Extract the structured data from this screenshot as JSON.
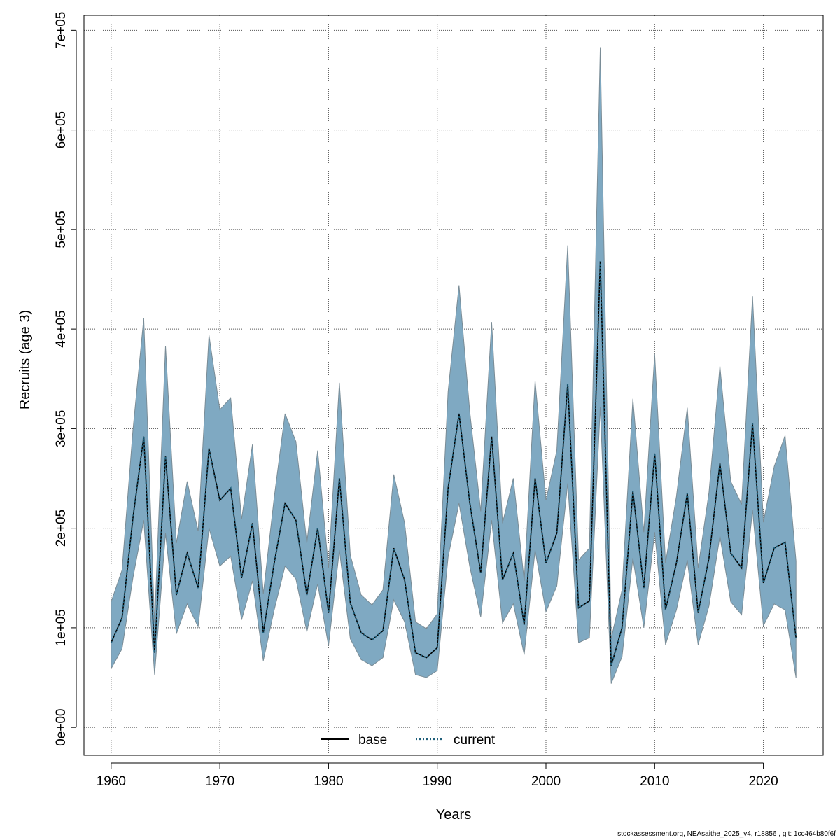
{
  "chart_data": {
    "type": "line",
    "xlabel": "Years",
    "ylabel": "Recruits (age 3)",
    "xlim": [
      1957.5,
      2025.5
    ],
    "ylim": [
      -28000,
      715000
    ],
    "x_ticks": [
      {
        "value": 1960,
        "label": "1960"
      },
      {
        "value": 1970,
        "label": "1970"
      },
      {
        "value": 1980,
        "label": "1980"
      },
      {
        "value": 1990,
        "label": "1990"
      },
      {
        "value": 2000,
        "label": "2000"
      },
      {
        "value": 2010,
        "label": "2010"
      },
      {
        "value": 2020,
        "label": "2020"
      }
    ],
    "y_ticks": [
      {
        "value": 0,
        "label": "0e+00"
      },
      {
        "value": 100000,
        "label": "1e+05"
      },
      {
        "value": 200000,
        "label": "2e+05"
      },
      {
        "value": 300000,
        "label": "3e+05"
      },
      {
        "value": 400000,
        "label": "4e+05"
      },
      {
        "value": 500000,
        "label": "5e+05"
      },
      {
        "value": 600000,
        "label": "6e+05"
      },
      {
        "value": 700000,
        "label": "7e+05"
      }
    ],
    "grid": true,
    "legend_position": "bottom-center",
    "legend": [
      {
        "label": "base",
        "color": "#000000",
        "style": "solid"
      },
      {
        "label": "current",
        "color": "#1f5f7a",
        "style": "dotted"
      }
    ],
    "band_color": "#7fa9c2",
    "band_edge_color": "#7a8c96",
    "x": [
      1960,
      1961,
      1962,
      1963,
      1964,
      1965,
      1966,
      1967,
      1968,
      1969,
      1970,
      1971,
      1972,
      1973,
      1974,
      1975,
      1976,
      1977,
      1978,
      1979,
      1980,
      1981,
      1982,
      1983,
      1984,
      1985,
      1986,
      1987,
      1988,
      1989,
      1990,
      1991,
      1992,
      1993,
      1994,
      1995,
      1996,
      1997,
      1998,
      1999,
      2000,
      2001,
      2002,
      2003,
      2004,
      2005,
      2006,
      2007,
      2008,
      2009,
      2010,
      2011,
      2012,
      2013,
      2014,
      2015,
      2016,
      2017,
      2018,
      2019,
      2020,
      2021,
      2022,
      2023
    ],
    "series": [
      {
        "name": "base",
        "color": "#000000",
        "values": [
          85000,
          110000,
          210000,
          292000,
          75000,
          272000,
          133000,
          175000,
          140000,
          280000,
          228000,
          240000,
          150000,
          205000,
          95000,
          165000,
          225000,
          208000,
          133000,
          200000,
          115000,
          250000,
          125000,
          95000,
          88000,
          97000,
          180000,
          148000,
          75000,
          70000,
          80000,
          240000,
          315000,
          225000,
          155000,
          292000,
          148000,
          175000,
          103000,
          250000,
          165000,
          195000,
          345000,
          120000,
          127000,
          468000,
          62000,
          100000,
          237000,
          140000,
          275000,
          118000,
          165000,
          235000,
          115000,
          170000,
          265000,
          175000,
          160000,
          305000,
          145000,
          180000,
          186000,
          90000
        ]
      },
      {
        "name": "current",
        "color": "#1f5f7a",
        "values": [
          85000,
          110000,
          210000,
          292000,
          75000,
          272000,
          133000,
          175000,
          140000,
          280000,
          228000,
          240000,
          150000,
          205000,
          95000,
          165000,
          225000,
          208000,
          133000,
          200000,
          115000,
          250000,
          125000,
          95000,
          88000,
          97000,
          180000,
          148000,
          75000,
          70000,
          80000,
          240000,
          315000,
          225000,
          155000,
          292000,
          148000,
          175000,
          103000,
          250000,
          165000,
          195000,
          345000,
          120000,
          127000,
          468000,
          62000,
          100000,
          237000,
          140000,
          275000,
          118000,
          165000,
          235000,
          115000,
          170000,
          265000,
          175000,
          160000,
          305000,
          145000,
          180000,
          186000,
          90000
        ]
      }
    ],
    "band_lower": [
      59000,
      79000,
      150000,
      208000,
      53000,
      195000,
      94000,
      124000,
      101000,
      200000,
      162000,
      172000,
      108000,
      147000,
      67000,
      118000,
      162000,
      149000,
      96000,
      144000,
      82000,
      178000,
      89000,
      68000,
      62000,
      70000,
      128000,
      106000,
      53000,
      50000,
      57000,
      171000,
      225000,
      161000,
      111000,
      208000,
      105000,
      124000,
      73000,
      178000,
      116000,
      142000,
      245000,
      85000,
      90000,
      322000,
      44000,
      71000,
      170000,
      100000,
      196000,
      83000,
      118000,
      168000,
      83000,
      122000,
      192000,
      126000,
      113000,
      218000,
      102000,
      124000,
      118000,
      50000
    ],
    "band_upper": [
      126000,
      158000,
      298000,
      411000,
      105000,
      383000,
      185000,
      247000,
      197000,
      394000,
      319000,
      331000,
      209000,
      284000,
      134000,
      231000,
      315000,
      287000,
      185000,
      278000,
      160000,
      346000,
      173000,
      133000,
      123000,
      138000,
      254000,
      205000,
      106000,
      99000,
      114000,
      337000,
      444000,
      316000,
      217000,
      407000,
      205000,
      250000,
      147000,
      348000,
      228000,
      278000,
      484000,
      168000,
      180000,
      683000,
      89000,
      138000,
      330000,
      196000,
      375000,
      165000,
      232000,
      321000,
      160000,
      236000,
      363000,
      247000,
      224000,
      433000,
      206000,
      262000,
      293000,
      167000
    ]
  },
  "footer": {
    "text": "stockassessment.org, NEAsaithe_2025_v4, r18856 , git: 1cc464b80f6f"
  }
}
